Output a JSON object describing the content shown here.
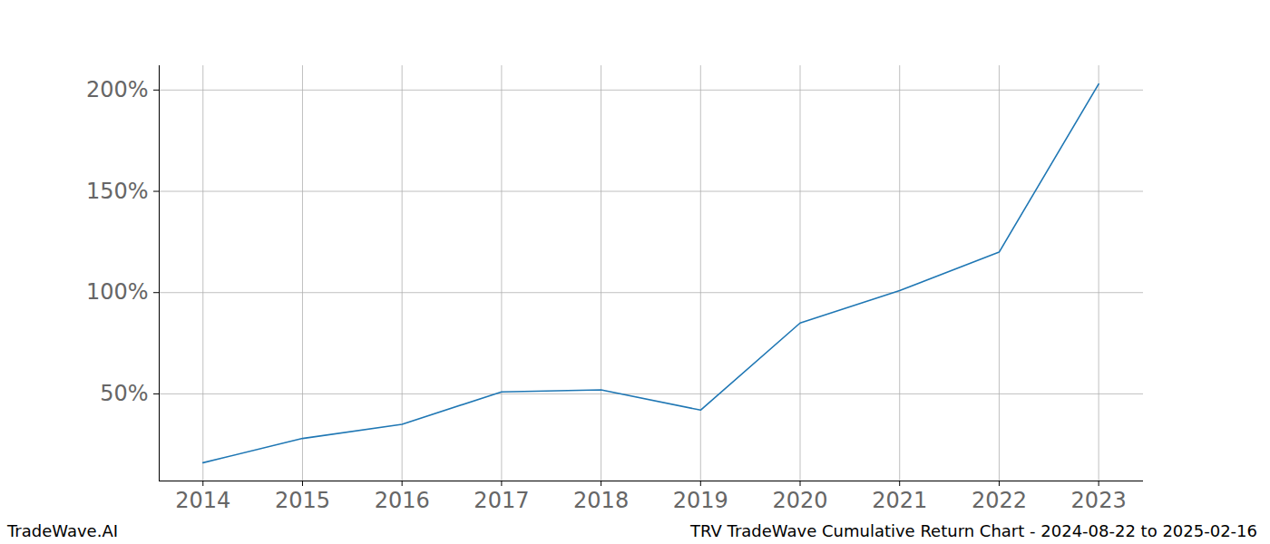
{
  "chart_data": {
    "type": "line",
    "title": "TRV TradeWave Cumulative Return Chart - 2024-08-22 to 2025-02-16",
    "annotations": [
      "TradeWave.AI"
    ],
    "x": [
      2014,
      2015,
      2016,
      2017,
      2018,
      2019,
      2020,
      2021,
      2022,
      2023
    ],
    "values": [
      16,
      28,
      35,
      51,
      52,
      42,
      85,
      101,
      120,
      203
    ],
    "color": "#1f77b4",
    "xlim": [
      2013.56,
      2023.45
    ],
    "xticks": [
      2014,
      2015,
      2016,
      2017,
      2018,
      2019,
      2020,
      2021,
      2022,
      2023
    ],
    "ylim": [
      7,
      212
    ],
    "yticks": [
      {
        "value": 50,
        "label": "50%"
      },
      {
        "value": 100,
        "label": "100%"
      },
      {
        "value": 150,
        "label": "150%"
      },
      {
        "value": 200,
        "label": "200%"
      }
    ],
    "grid": true
  }
}
